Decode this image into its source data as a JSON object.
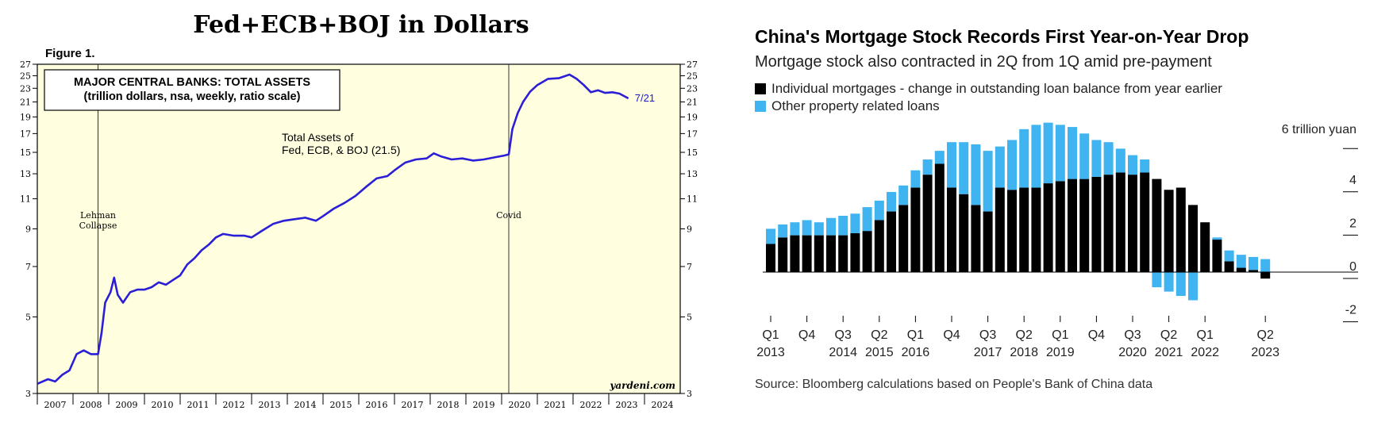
{
  "left": {
    "title": "Fed+ECB+BOJ in Dollars",
    "figure_label": "Figure 1.",
    "box_line1": "MAJOR CENTRAL BANKS: TOTAL ASSETS",
    "box_line2": "(trillion dollars, nsa, weekly, ratio scale)",
    "series_label_line1": "Total Assets of",
    "series_label_line2": "Fed, ECB, & BOJ (21.5)",
    "end_label": "7/21",
    "annotation_lehman_1": "Lehman",
    "annotation_lehman_2": "Collapse",
    "annotation_covid": "Covid",
    "watermark": "yardeni.com",
    "colors": {
      "background": "#ffffe0",
      "line": "#2a1ed6",
      "text_accent": "#1a1acc"
    }
  },
  "right": {
    "title": "China's Mortgage Stock Records First Year-on-Year Drop",
    "subtitle": "Mortgage stock also contracted in 2Q from 1Q amid pre-payment",
    "legend": [
      {
        "label": "Individual mortgages - change in outstanding loan balance from year earlier",
        "color": "#000000"
      },
      {
        "label": "Other property related loans",
        "color": "#40b4f0"
      }
    ],
    "y_unit_label": "6 trillion yuan",
    "source": "Source: Bloomberg calculations based on People's Bank of China data",
    "colors": {
      "individual": "#000000",
      "other": "#40b4f0"
    }
  },
  "chart_data": [
    {
      "type": "line",
      "title": "Fed+ECB+BOJ in Dollars",
      "subtitle": "MAJOR CENTRAL BANKS: TOTAL ASSETS (trillion dollars, nsa, weekly, ratio scale)",
      "xlabel": "",
      "ylabel": "",
      "scale": "log",
      "xlim": [
        2007.0,
        2025.0
      ],
      "ylim": [
        3,
        27
      ],
      "y_ticks": [
        3,
        5,
        7,
        9,
        11,
        13,
        15,
        17,
        19,
        21,
        23,
        25,
        27
      ],
      "x_tick_labels": [
        "2007",
        "2008",
        "2009",
        "2010",
        "2011",
        "2012",
        "2013",
        "2014",
        "2015",
        "2016",
        "2017",
        "2018",
        "2019",
        "2020",
        "2021",
        "2022",
        "2023",
        "2024"
      ],
      "vlines": [
        {
          "x": 2008.7,
          "label": "Lehman Collapse"
        },
        {
          "x": 2020.2,
          "label": "Covid"
        }
      ],
      "grid": false,
      "series": [
        {
          "name": "Total Assets of Fed, ECB, & BOJ (21.5)",
          "x": [
            2007.0,
            2007.3,
            2007.5,
            2007.7,
            2007.9,
            2008.1,
            2008.3,
            2008.5,
            2008.7,
            2008.8,
            2008.9,
            2009.05,
            2009.15,
            2009.25,
            2009.4,
            2009.6,
            2009.8,
            2010.0,
            2010.2,
            2010.4,
            2010.6,
            2010.8,
            2011.0,
            2011.2,
            2011.4,
            2011.6,
            2011.8,
            2012.0,
            2012.2,
            2012.5,
            2012.8,
            2013.0,
            2013.3,
            2013.6,
            2013.9,
            2014.2,
            2014.5,
            2014.8,
            2015.0,
            2015.3,
            2015.6,
            2015.9,
            2016.2,
            2016.5,
            2016.8,
            2017.0,
            2017.3,
            2017.6,
            2017.9,
            2018.1,
            2018.3,
            2018.6,
            2018.9,
            2019.2,
            2019.5,
            2019.8,
            2020.1,
            2020.2,
            2020.3,
            2020.45,
            2020.6,
            2020.8,
            2021.0,
            2021.3,
            2021.6,
            2021.9,
            2022.1,
            2022.3,
            2022.5,
            2022.7,
            2022.9,
            2023.1,
            2023.3,
            2023.55
          ],
          "y": [
            3.2,
            3.3,
            3.25,
            3.4,
            3.5,
            3.9,
            4.0,
            3.9,
            3.9,
            4.5,
            5.5,
            5.9,
            6.5,
            5.8,
            5.5,
            5.9,
            6.0,
            6.0,
            6.1,
            6.3,
            6.2,
            6.4,
            6.6,
            7.1,
            7.4,
            7.8,
            8.1,
            8.5,
            8.7,
            8.6,
            8.6,
            8.5,
            8.9,
            9.3,
            9.5,
            9.6,
            9.7,
            9.5,
            9.8,
            10.3,
            10.7,
            11.2,
            11.9,
            12.6,
            12.8,
            13.3,
            14.0,
            14.3,
            14.4,
            14.9,
            14.6,
            14.3,
            14.4,
            14.2,
            14.3,
            14.5,
            14.7,
            14.8,
            17.5,
            19.5,
            21.0,
            22.5,
            23.5,
            24.5,
            24.6,
            25.2,
            24.5,
            23.5,
            22.4,
            22.7,
            22.3,
            22.4,
            22.2,
            21.5
          ]
        }
      ]
    },
    {
      "type": "bar",
      "stacked": true,
      "title": "China's Mortgage Stock Records First Year-on-Year Drop",
      "subtitle": "Mortgage stock also contracted in 2Q from 1Q amid pre-payment",
      "ylabel": "6 trillion yuan",
      "ylim": [
        -2,
        6
      ],
      "y_ticks": [
        -2,
        0,
        2,
        4,
        6
      ],
      "x_tick_labels": [
        "Q1 2013",
        "Q4",
        "Q3 2014",
        "Q2 2015",
        "Q1 2016",
        "Q4",
        "Q3 2017",
        "Q2 2018",
        "Q1 2019",
        "Q4",
        "Q3 2020",
        "Q2 2021",
        "Q1 2022",
        "Q2 2023"
      ],
      "categories": [
        "2013Q1",
        "2013Q2",
        "2013Q3",
        "2013Q4",
        "2014Q1",
        "2014Q2",
        "2014Q3",
        "2014Q4",
        "2015Q1",
        "2015Q2",
        "2015Q3",
        "2015Q4",
        "2016Q1",
        "2016Q2",
        "2016Q3",
        "2016Q4",
        "2017Q1",
        "2017Q2",
        "2017Q3",
        "2017Q4",
        "2018Q1",
        "2018Q2",
        "2018Q3",
        "2018Q4",
        "2019Q1",
        "2019Q2",
        "2019Q3",
        "2019Q4",
        "2020Q1",
        "2020Q2",
        "2020Q3",
        "2020Q4",
        "2021Q1",
        "2021Q2",
        "2021Q3",
        "2021Q4",
        "2022Q1",
        "2022Q2",
        "2022Q3",
        "2022Q4",
        "2023Q1",
        "2023Q2"
      ],
      "series": [
        {
          "name": "Individual mortgages - change in outstanding loan balance from year earlier",
          "values": [
            1.3,
            1.6,
            1.7,
            1.7,
            1.7,
            1.7,
            1.7,
            1.8,
            1.9,
            2.4,
            2.8,
            3.1,
            3.9,
            4.5,
            5.0,
            3.9,
            3.6,
            3.1,
            2.8,
            3.9,
            3.8,
            3.9,
            3.9,
            4.1,
            4.2,
            4.3,
            4.3,
            4.4,
            4.5,
            4.6,
            4.5,
            4.6,
            4.3,
            3.8,
            3.9,
            3.1,
            2.3,
            1.5,
            0.5,
            0.2,
            0.1,
            -0.3
          ]
        },
        {
          "name": "Other property related loans",
          "values": [
            0.7,
            0.6,
            0.6,
            0.7,
            0.6,
            0.8,
            0.9,
            0.9,
            1.1,
            0.9,
            0.9,
            0.9,
            0.8,
            0.7,
            0.6,
            2.1,
            2.4,
            2.8,
            2.8,
            1.9,
            2.3,
            2.7,
            2.9,
            2.8,
            2.6,
            2.4,
            2.1,
            1.7,
            1.5,
            1.1,
            0.9,
            0.6,
            -0.7,
            -0.9,
            -1.1,
            -1.3,
            0.0,
            0.1,
            0.5,
            0.6,
            0.6,
            0.6
          ]
        }
      ]
    }
  ]
}
